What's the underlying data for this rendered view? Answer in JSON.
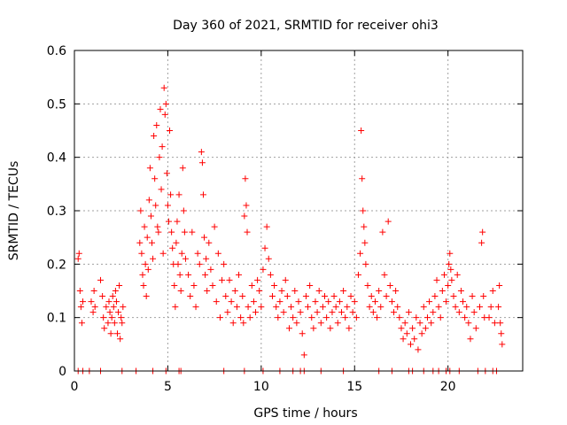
{
  "chart_data": {
    "type": "scatter",
    "title": "Day 360 of 2021, SRMTID for receiver ohi3",
    "xlabel": "GPS time / hours",
    "ylabel": "SRMTID / TECUs",
    "xlim": [
      0,
      24
    ],
    "ylim": [
      0,
      0.6
    ],
    "xticks": [
      0,
      5,
      10,
      15,
      20
    ],
    "xtick_labels": [
      "0",
      "5",
      "10",
      "15",
      "20"
    ],
    "yticks": [
      0,
      0.1,
      0.2,
      0.3,
      0.4,
      0.5,
      0.6
    ],
    "ytick_labels": [
      "0",
      "0.1",
      "0.2",
      "0.3",
      "0.4",
      "0.5",
      "0.6"
    ],
    "grid": true,
    "marker": "+",
    "colors": {
      "points": "#ff0000",
      "grid": "#a0a0a0",
      "axes": "#000000"
    },
    "series": [
      {
        "name": "SRMTID",
        "points": [
          [
            0.2,
            0.21
          ],
          [
            0.25,
            0.22
          ],
          [
            0.3,
            0.15
          ],
          [
            0.35,
            0.12
          ],
          [
            0.4,
            0.09
          ],
          [
            0.45,
            0.13
          ],
          [
            0.9,
            0.13
          ],
          [
            1.0,
            0.11
          ],
          [
            1.05,
            0.15
          ],
          [
            1.1,
            0.12
          ],
          [
            1.4,
            0.17
          ],
          [
            1.5,
            0.14
          ],
          [
            1.55,
            0.1
          ],
          [
            1.6,
            0.08
          ],
          [
            1.7,
            0.12
          ],
          [
            1.8,
            0.09
          ],
          [
            1.85,
            0.13
          ],
          [
            1.9,
            0.11
          ],
          [
            1.95,
            0.07
          ],
          [
            2.0,
            0.1
          ],
          [
            2.05,
            0.14
          ],
          [
            2.1,
            0.12
          ],
          [
            2.15,
            0.09
          ],
          [
            2.2,
            0.15
          ],
          [
            2.25,
            0.13
          ],
          [
            2.3,
            0.07
          ],
          [
            2.35,
            0.11
          ],
          [
            2.4,
            0.16
          ],
          [
            2.45,
            0.06
          ],
          [
            2.5,
            0.1
          ],
          [
            2.55,
            0.09
          ],
          [
            2.6,
            0.12
          ],
          [
            3.5,
            0.24
          ],
          [
            3.55,
            0.3
          ],
          [
            3.6,
            0.22
          ],
          [
            3.65,
            0.18
          ],
          [
            3.7,
            0.16
          ],
          [
            3.75,
            0.27
          ],
          [
            3.8,
            0.2
          ],
          [
            3.85,
            0.14
          ],
          [
            3.9,
            0.25
          ],
          [
            3.95,
            0.19
          ],
          [
            4.0,
            0.32
          ],
          [
            4.05,
            0.38
          ],
          [
            4.1,
            0.29
          ],
          [
            4.15,
            0.24
          ],
          [
            4.2,
            0.21
          ],
          [
            4.25,
            0.44
          ],
          [
            4.3,
            0.36
          ],
          [
            4.35,
            0.31
          ],
          [
            4.4,
            0.46
          ],
          [
            4.45,
            0.27
          ],
          [
            4.5,
            0.26
          ],
          [
            4.55,
            0.4
          ],
          [
            4.6,
            0.49
          ],
          [
            4.65,
            0.34
          ],
          [
            4.7,
            0.42
          ],
          [
            4.75,
            0.22
          ],
          [
            4.8,
            0.53
          ],
          [
            4.85,
            0.48
          ],
          [
            4.9,
            0.5
          ],
          [
            4.95,
            0.37
          ],
          [
            5.0,
            0.31
          ],
          [
            5.05,
            0.28
          ],
          [
            5.1,
            0.45
          ],
          [
            5.15,
            0.33
          ],
          [
            5.2,
            0.26
          ],
          [
            5.25,
            0.23
          ],
          [
            5.3,
            0.2
          ],
          [
            5.35,
            0.16
          ],
          [
            5.4,
            0.12
          ],
          [
            5.45,
            0.24
          ],
          [
            5.5,
            0.28
          ],
          [
            5.55,
            0.2
          ],
          [
            5.6,
            0.33
          ],
          [
            5.65,
            0.18
          ],
          [
            5.7,
            0.15
          ],
          [
            5.75,
            0.22
          ],
          [
            5.8,
            0.38
          ],
          [
            5.85,
            0.3
          ],
          [
            5.9,
            0.26
          ],
          [
            5.95,
            0.21
          ],
          [
            6.1,
            0.18
          ],
          [
            6.2,
            0.14
          ],
          [
            6.3,
            0.26
          ],
          [
            6.4,
            0.16
          ],
          [
            6.5,
            0.12
          ],
          [
            6.6,
            0.22
          ],
          [
            6.7,
            0.2
          ],
          [
            6.8,
            0.41
          ],
          [
            6.85,
            0.39
          ],
          [
            6.9,
            0.33
          ],
          [
            6.95,
            0.25
          ],
          [
            7.0,
            0.18
          ],
          [
            7.05,
            0.21
          ],
          [
            7.1,
            0.15
          ],
          [
            7.2,
            0.24
          ],
          [
            7.3,
            0.19
          ],
          [
            7.4,
            0.16
          ],
          [
            7.5,
            0.27
          ],
          [
            7.6,
            0.13
          ],
          [
            7.7,
            0.22
          ],
          [
            7.8,
            0.1
          ],
          [
            7.9,
            0.17
          ],
          [
            8.0,
            0.2
          ],
          [
            8.1,
            0.14
          ],
          [
            8.2,
            0.11
          ],
          [
            8.3,
            0.17
          ],
          [
            8.4,
            0.13
          ],
          [
            8.5,
            0.09
          ],
          [
            8.6,
            0.15
          ],
          [
            8.7,
            0.12
          ],
          [
            8.8,
            0.18
          ],
          [
            8.9,
            0.1
          ],
          [
            9.0,
            0.14
          ],
          [
            9.05,
            0.09
          ],
          [
            9.1,
            0.29
          ],
          [
            9.15,
            0.36
          ],
          [
            9.2,
            0.31
          ],
          [
            9.25,
            0.26
          ],
          [
            9.3,
            0.12
          ],
          [
            9.4,
            0.1
          ],
          [
            9.5,
            0.16
          ],
          [
            9.6,
            0.13
          ],
          [
            9.7,
            0.11
          ],
          [
            9.8,
            0.17
          ],
          [
            9.9,
            0.15
          ],
          [
            10.0,
            0.12
          ],
          [
            10.1,
            0.19
          ],
          [
            10.2,
            0.23
          ],
          [
            10.3,
            0.27
          ],
          [
            10.4,
            0.21
          ],
          [
            10.5,
            0.18
          ],
          [
            10.6,
            0.14
          ],
          [
            10.7,
            0.16
          ],
          [
            10.8,
            0.12
          ],
          [
            10.9,
            0.1
          ],
          [
            11.0,
            0.13
          ],
          [
            11.1,
            0.15
          ],
          [
            11.2,
            0.11
          ],
          [
            11.3,
            0.17
          ],
          [
            11.4,
            0.14
          ],
          [
            11.5,
            0.08
          ],
          [
            11.6,
            0.12
          ],
          [
            11.7,
            0.1
          ],
          [
            11.8,
            0.15
          ],
          [
            11.9,
            0.09
          ],
          [
            12.0,
            0.13
          ],
          [
            12.1,
            0.11
          ],
          [
            12.2,
            0.07
          ],
          [
            12.3,
            0.03
          ],
          [
            12.4,
            0.14
          ],
          [
            12.5,
            0.12
          ],
          [
            12.6,
            0.16
          ],
          [
            12.7,
            0.1
          ],
          [
            12.8,
            0.08
          ],
          [
            12.9,
            0.13
          ],
          [
            13.0,
            0.11
          ],
          [
            13.1,
            0.15
          ],
          [
            13.2,
            0.09
          ],
          [
            13.3,
            0.12
          ],
          [
            13.4,
            0.14
          ],
          [
            13.5,
            0.1
          ],
          [
            13.6,
            0.13
          ],
          [
            13.7,
            0.08
          ],
          [
            13.8,
            0.11
          ],
          [
            13.9,
            0.14
          ],
          [
            14.0,
            0.12
          ],
          [
            14.1,
            0.09
          ],
          [
            14.2,
            0.13
          ],
          [
            14.3,
            0.11
          ],
          [
            14.4,
            0.15
          ],
          [
            14.5,
            0.1
          ],
          [
            14.6,
            0.12
          ],
          [
            14.7,
            0.08
          ],
          [
            14.8,
            0.14
          ],
          [
            14.9,
            0.11
          ],
          [
            15.0,
            0.13
          ],
          [
            15.1,
            0.1
          ],
          [
            15.2,
            0.18
          ],
          [
            15.3,
            0.22
          ],
          [
            15.35,
            0.45
          ],
          [
            15.4,
            0.36
          ],
          [
            15.45,
            0.3
          ],
          [
            15.5,
            0.27
          ],
          [
            15.55,
            0.24
          ],
          [
            15.6,
            0.2
          ],
          [
            15.7,
            0.16
          ],
          [
            15.8,
            0.12
          ],
          [
            15.9,
            0.14
          ],
          [
            16.0,
            0.11
          ],
          [
            16.1,
            0.13
          ],
          [
            16.2,
            0.1
          ],
          [
            16.3,
            0.15
          ],
          [
            16.4,
            0.12
          ],
          [
            16.5,
            0.26
          ],
          [
            16.6,
            0.18
          ],
          [
            16.7,
            0.14
          ],
          [
            16.8,
            0.28
          ],
          [
            16.9,
            0.16
          ],
          [
            17.0,
            0.13
          ],
          [
            17.1,
            0.11
          ],
          [
            17.2,
            0.15
          ],
          [
            17.3,
            0.12
          ],
          [
            17.4,
            0.1
          ],
          [
            17.5,
            0.08
          ],
          [
            17.6,
            0.06
          ],
          [
            17.7,
            0.09
          ],
          [
            17.8,
            0.07
          ],
          [
            17.9,
            0.11
          ],
          [
            18.0,
            0.05
          ],
          [
            18.1,
            0.08
          ],
          [
            18.2,
            0.06
          ],
          [
            18.3,
            0.1
          ],
          [
            18.4,
            0.04
          ],
          [
            18.5,
            0.09
          ],
          [
            18.6,
            0.07
          ],
          [
            18.7,
            0.12
          ],
          [
            18.8,
            0.08
          ],
          [
            18.9,
            0.1
          ],
          [
            19.0,
            0.13
          ],
          [
            19.1,
            0.09
          ],
          [
            19.2,
            0.11
          ],
          [
            19.3,
            0.14
          ],
          [
            19.4,
            0.17
          ],
          [
            19.5,
            0.12
          ],
          [
            19.6,
            0.1
          ],
          [
            19.7,
            0.15
          ],
          [
            19.8,
            0.18
          ],
          [
            19.9,
            0.13
          ],
          [
            20.0,
            0.16
          ],
          [
            20.05,
            0.2
          ],
          [
            20.1,
            0.22
          ],
          [
            20.15,
            0.19
          ],
          [
            20.2,
            0.17
          ],
          [
            20.3,
            0.14
          ],
          [
            20.4,
            0.12
          ],
          [
            20.5,
            0.18
          ],
          [
            20.6,
            0.11
          ],
          [
            20.7,
            0.15
          ],
          [
            20.8,
            0.13
          ],
          [
            20.9,
            0.1
          ],
          [
            21.0,
            0.12
          ],
          [
            21.1,
            0.09
          ],
          [
            21.2,
            0.06
          ],
          [
            21.3,
            0.14
          ],
          [
            21.4,
            0.11
          ],
          [
            21.5,
            0.08
          ],
          [
            21.7,
            0.12
          ],
          [
            21.8,
            0.24
          ],
          [
            21.85,
            0.26
          ],
          [
            21.9,
            0.14
          ],
          [
            21.95,
            0.1
          ],
          [
            22.2,
            0.1
          ],
          [
            22.3,
            0.12
          ],
          [
            22.4,
            0.15
          ],
          [
            22.5,
            0.09
          ],
          [
            22.7,
            0.12
          ],
          [
            22.75,
            0.16
          ],
          [
            22.8,
            0.09
          ],
          [
            22.85,
            0.07
          ],
          [
            22.9,
            0.05
          ],
          [
            0.2,
            0
          ],
          [
            0.45,
            0
          ],
          [
            0.8,
            0
          ],
          [
            1.4,
            0
          ],
          [
            2.55,
            0
          ],
          [
            3.3,
            0
          ],
          [
            4.2,
            0
          ],
          [
            4.9,
            0
          ],
          [
            5.6,
            0
          ],
          [
            5.7,
            0
          ],
          [
            8.0,
            0
          ],
          [
            9.1,
            0
          ],
          [
            10.1,
            0
          ],
          [
            11.0,
            0
          ],
          [
            11.7,
            0
          ],
          [
            12.1,
            0
          ],
          [
            12.3,
            0
          ],
          [
            13.2,
            0
          ],
          [
            14.4,
            0
          ],
          [
            16.3,
            0
          ],
          [
            17.0,
            0
          ],
          [
            17.9,
            0
          ],
          [
            18.1,
            0
          ],
          [
            18.7,
            0
          ],
          [
            19.2,
            0
          ],
          [
            19.5,
            0
          ],
          [
            19.9,
            0
          ],
          [
            20.1,
            0
          ],
          [
            20.6,
            0
          ],
          [
            21.6,
            0
          ],
          [
            22.0,
            0
          ],
          [
            22.4,
            0
          ],
          [
            22.6,
            0
          ]
        ]
      }
    ]
  }
}
